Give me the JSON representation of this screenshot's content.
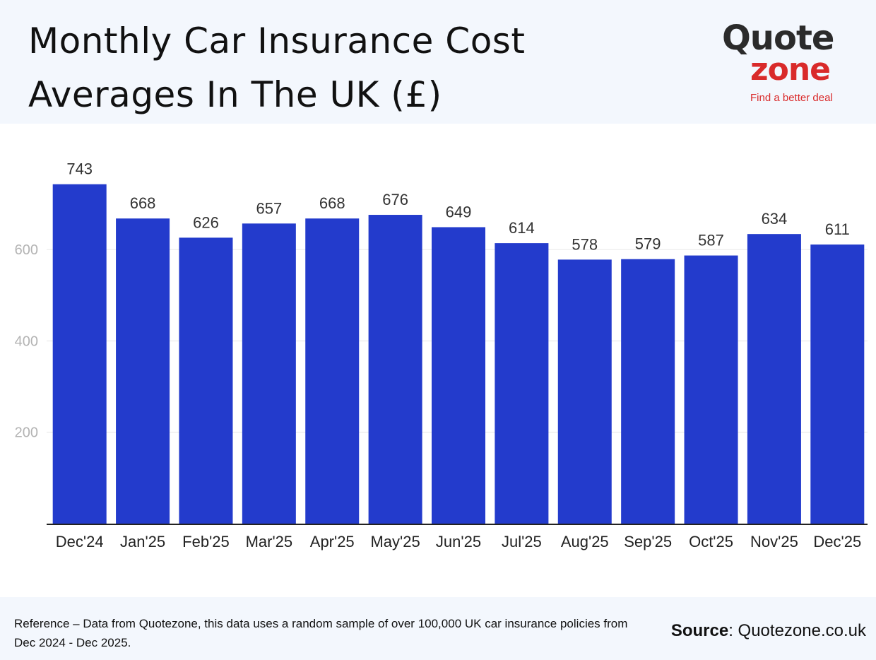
{
  "header": {
    "title_line1": "Monthly Car Insurance Cost",
    "title_line2": "Averages In The UK (£)"
  },
  "logo": {
    "word1": "Quote",
    "word2": "zone",
    "tagline": "Find a better deal",
    "colors": {
      "dark": "#2b2b2b",
      "red": "#d92a2a"
    }
  },
  "chart_data": {
    "type": "bar",
    "title": "Monthly Car Insurance Cost Averages In The UK (£)",
    "categories": [
      "Dec'24",
      "Jan'25",
      "Feb'25",
      "Mar'25",
      "Apr'25",
      "May'25",
      "Jun'25",
      "Jul'25",
      "Aug'25",
      "Sep'25",
      "Oct'25",
      "Nov'25",
      "Dec'25"
    ],
    "values": [
      743,
      668,
      626,
      657,
      668,
      676,
      649,
      614,
      578,
      579,
      587,
      634,
      611
    ],
    "yticks": [
      200,
      400,
      600
    ],
    "ylim": [
      0,
      800
    ],
    "grid": true,
    "bar_color": "#233bcc",
    "xlabel": "",
    "ylabel": ""
  },
  "footer": {
    "note": "Reference – Data from Quotezone, this data uses a random sample of over 100,000 UK car insurance policies from Dec 2024 - Dec 2025.",
    "source_label": "Source",
    "source_value": ": Quotezone.co.uk"
  }
}
